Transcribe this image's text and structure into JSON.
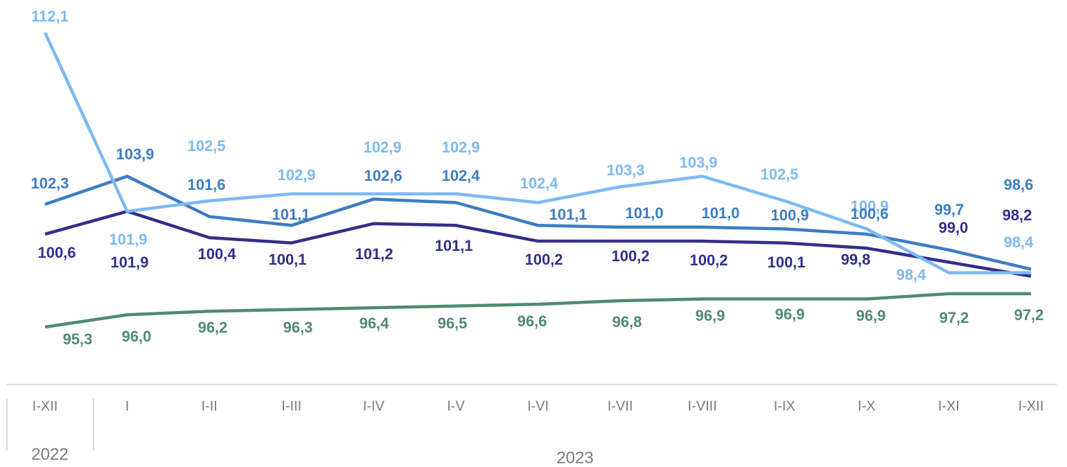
{
  "chart_data": {
    "type": "line",
    "categories": [
      "I-XII",
      "I",
      "I-II",
      "I-III",
      "I-IV",
      "I-V",
      "I-VI",
      "I-VII",
      "I-VIII",
      "I-IX",
      "I-X",
      "I-XI",
      "I-XII"
    ],
    "groups": [
      "2022",
      "2023"
    ],
    "series": [
      {
        "color": "#7db9f3",
        "values": [
          112.1,
          101.9,
          102.5,
          102.9,
          102.9,
          102.9,
          102.4,
          103.3,
          103.9,
          102.5,
          100.9,
          98.4,
          98.4
        ],
        "value_labels": [
          "112,1",
          "101,9",
          "102,5",
          "102,9",
          "102,9",
          "102,9",
          "102,4",
          "103,3",
          "103,9",
          "102,5",
          "100,9",
          "98,4",
          "98,4"
        ]
      },
      {
        "color": "#3d7cc3",
        "values": [
          102.3,
          103.9,
          101.6,
          101.1,
          102.6,
          102.4,
          101.1,
          101.0,
          101.0,
          100.9,
          100.6,
          99.7,
          98.6
        ],
        "value_labels": [
          "102,3",
          "103,9",
          "101,6",
          "101,1",
          "102,6",
          "102,4",
          "101,1",
          "101,0",
          "101,0",
          "100,9",
          "100,6",
          "99,7",
          "98,6"
        ]
      },
      {
        "color": "#322f8a",
        "values": [
          100.6,
          101.9,
          100.4,
          100.1,
          101.2,
          101.1,
          100.2,
          100.2,
          100.2,
          100.1,
          99.8,
          99.0,
          98.2
        ],
        "value_labels": [
          "100,6",
          "101,9",
          "100,4",
          "100,1",
          "101,2",
          "101,1",
          "100,2",
          "100,2",
          "100,2",
          "100,1",
          "99,8",
          "99,0",
          "98,2"
        ]
      },
      {
        "color": "#4f8a71",
        "values": [
          95.3,
          96.0,
          96.2,
          96.3,
          96.4,
          96.5,
          96.6,
          96.8,
          96.9,
          96.9,
          96.9,
          97.2,
          97.2
        ],
        "value_labels": [
          "95,3",
          "96,0",
          "96,2",
          "96,3",
          "96,4",
          "96,5",
          "96,6",
          "96,8",
          "96,9",
          "96,9",
          "96,9",
          "97,2",
          "97,2"
        ]
      }
    ]
  }
}
